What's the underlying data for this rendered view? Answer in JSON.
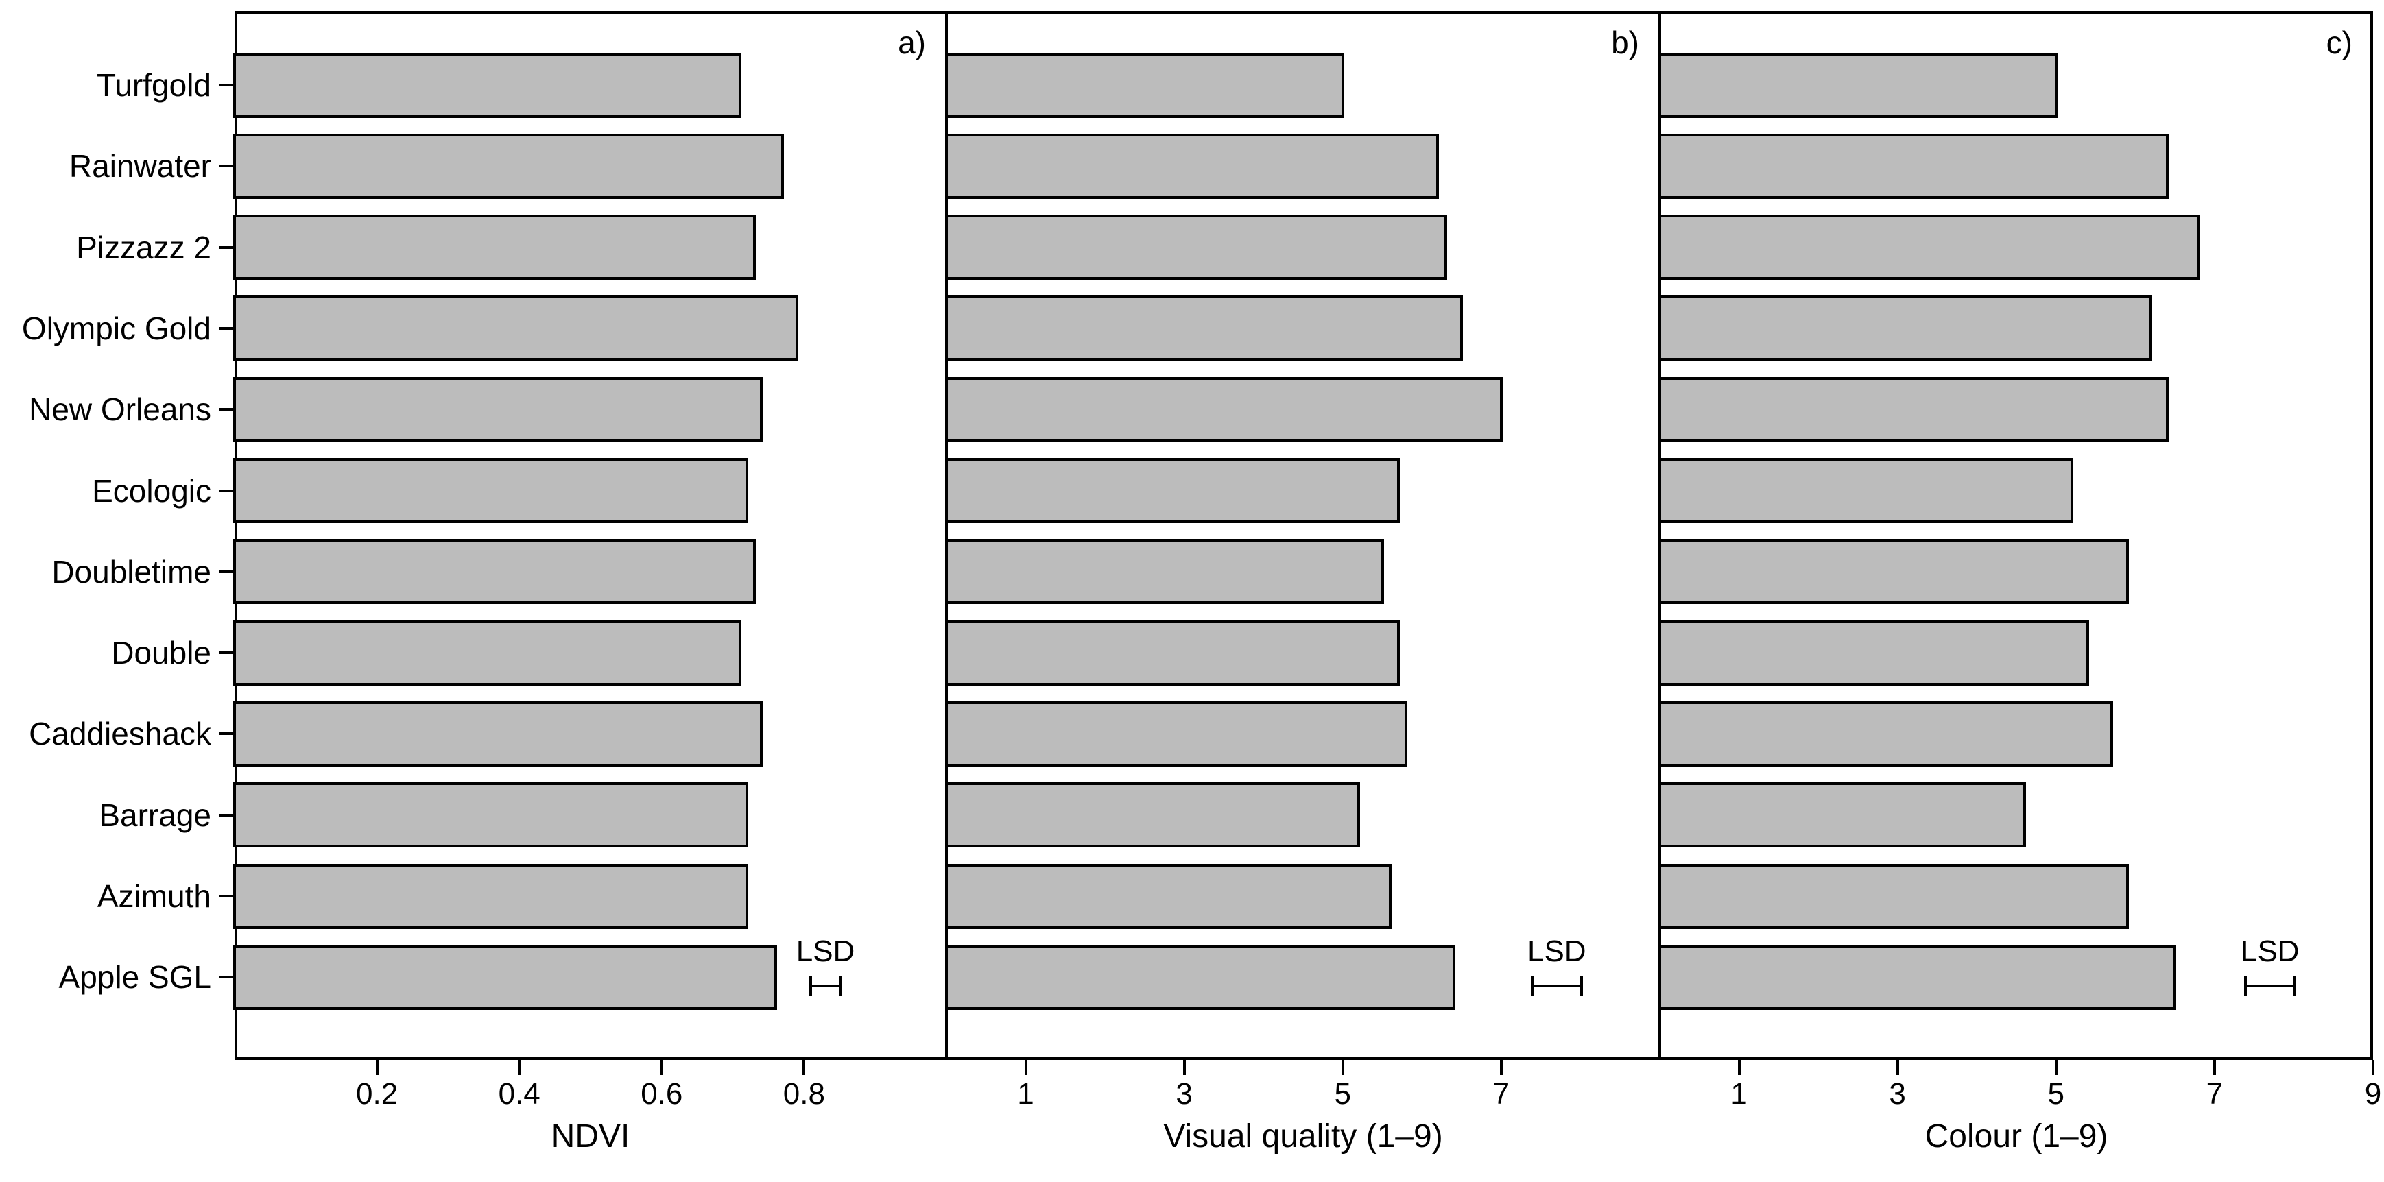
{
  "chart_data": {
    "type": "bar",
    "orientation": "horizontal",
    "background": "#ffffff",
    "categories": [
      "Turfgold",
      "Rainwater",
      "Pizzazz 2",
      "Olympic Gold",
      "New Orleans",
      "Ecologic",
      "Doubletime",
      "Double",
      "Caddieshack",
      "Barrage",
      "Azimuth",
      "Apple SGL"
    ],
    "panels": [
      {
        "id": "a",
        "panel_label": "a)",
        "xlabel": "NDVI",
        "xlim": [
          0,
          1.0
        ],
        "xticks": [
          0.2,
          0.4,
          0.6,
          0.8
        ],
        "xtick_labels": [
          "0.2",
          "0.4",
          "0.6",
          "0.8"
        ],
        "values": [
          0.71,
          0.77,
          0.73,
          0.79,
          0.74,
          0.72,
          0.73,
          0.71,
          0.74,
          0.72,
          0.72,
          0.76
        ],
        "lsd": {
          "label": "LSD",
          "center": 0.83,
          "half_width": 0.021
        }
      },
      {
        "id": "b",
        "panel_label": "b)",
        "xlabel": "Visual quality (1–9)",
        "xlim": [
          0,
          9
        ],
        "xticks": [
          1,
          3,
          5,
          7
        ],
        "xtick_labels": [
          "1",
          "3",
          "5",
          "7"
        ],
        "values": [
          5.0,
          6.2,
          6.3,
          6.5,
          7.0,
          5.7,
          5.5,
          5.7,
          5.8,
          5.2,
          5.6,
          6.4
        ],
        "lsd": {
          "label": "LSD",
          "center": 7.7,
          "half_width": 0.31
        }
      },
      {
        "id": "c",
        "panel_label": "c)",
        "xlabel": "Colour (1–9)",
        "xlim": [
          0,
          9
        ],
        "xticks": [
          1,
          3,
          5,
          7,
          9
        ],
        "xtick_labels": [
          "1",
          "3",
          "5",
          "7",
          "9"
        ],
        "values": [
          5.0,
          6.4,
          6.8,
          6.2,
          6.4,
          5.2,
          5.9,
          5.4,
          5.7,
          4.6,
          5.9,
          6.5
        ],
        "lsd": {
          "label": "LSD",
          "center": 7.7,
          "half_width": 0.31
        }
      }
    ],
    "style": {
      "bar_fill": "#bcbcbc",
      "line_color": "#000000",
      "text_color": "#000000"
    },
    "legend": null,
    "grid": false
  }
}
